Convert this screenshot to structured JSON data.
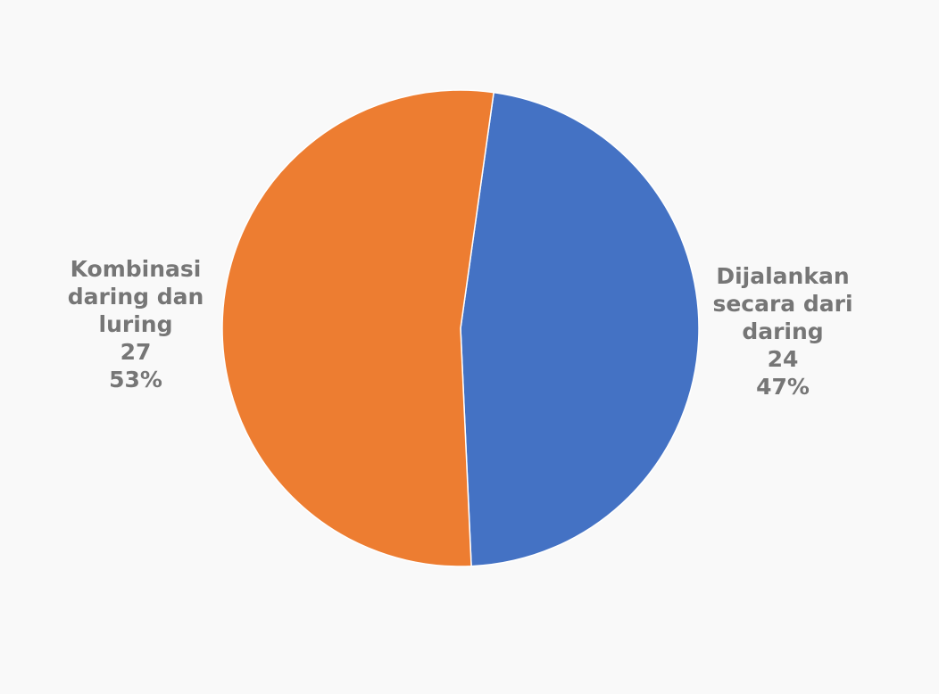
{
  "chart_data": {
    "type": "pie",
    "title": "",
    "slices": [
      {
        "label_lines": [
          "Dijalankan",
          "secara dari",
          "daring"
        ],
        "value": 24,
        "percent": "47%",
        "color": "#4472c4"
      },
      {
        "label_lines": [
          "Kombinasi",
          "daring dan",
          "luring"
        ],
        "value": 27,
        "percent": "53%",
        "color": "#ed7d31"
      }
    ],
    "start_angle_deg": 8,
    "direction": "clockwise",
    "legend": "none"
  }
}
